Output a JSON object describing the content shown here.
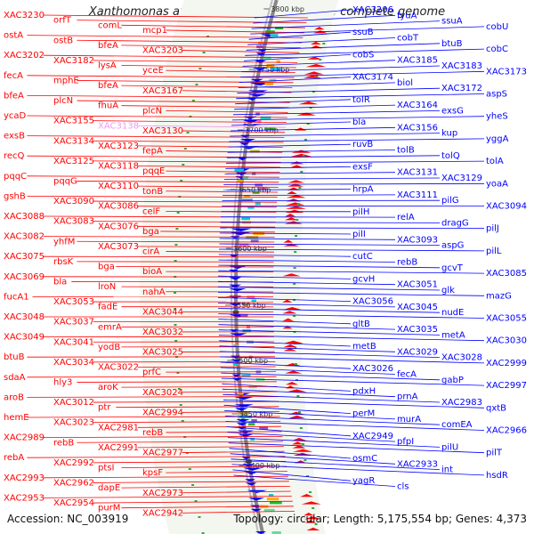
{
  "title": "Xanthomonas axonopodis pv. citri str. 306, complete genome",
  "accession": "Accession: NC_003919",
  "summary": "Topology: circular; Length: 5,175,554 bp; Genes: 4,373",
  "colors": {
    "reverse_strand": "#ff0000",
    "forward_strand": "#0000ff",
    "highlight_label": "#ee99ee",
    "backbone": "#888888"
  },
  "kbp_ticks": [
    "3800 kbp",
    "3750 kbp",
    "3700 kbp",
    "3650 kbp",
    "3600 kbp",
    "3550 kbp",
    "3500 kbp",
    "3450 kbp",
    "3400 kbp"
  ],
  "left_labels": [
    "XAC3230",
    "orfT",
    "comL",
    "mcp1",
    "ostA",
    "ostB",
    "bfeA",
    "XAC3203",
    "XAC3202",
    "XAC3182",
    "lysA",
    "yceE",
    "fecA",
    "mphE",
    "bfeA",
    "XAC3167",
    "bfeA",
    "plcN",
    "fhuA",
    "plcN",
    "ycaD",
    "XAC3155",
    "XAC3138",
    "XAC3130",
    "exsB",
    "XAC3134",
    "XAC3123",
    "fepA",
    "recQ",
    "XAC3125",
    "XAC3118",
    "pqqE",
    "pqqC",
    "pqqG",
    "XAC3110",
    "tonB",
    "gshB",
    "XAC3090",
    "XAC3086",
    "celF",
    "XAC3088",
    "XAC3083",
    "XAC3076",
    "bga",
    "XAC3082",
    "yhfM",
    "XAC3073",
    "cirA",
    "XAC3075",
    "rbsK",
    "bga",
    "bioA",
    "XAC3069",
    "bla",
    "lroN",
    "nahA",
    "fucA1",
    "XAC3053",
    "fadE",
    "XAC3044",
    "XAC3048",
    "XAC3037",
    "emrA",
    "XAC3032",
    "XAC3049",
    "XAC3041",
    "yodB",
    "XAC3025",
    "btuB",
    "XAC3034",
    "XAC3022",
    "prfC",
    "sdaA",
    "hly3",
    "aroK",
    "XAC3024",
    "aroB",
    "XAC3012",
    "ptr",
    "XAC2994",
    "hemE",
    "XAC3023",
    "XAC2981",
    "rebB",
    "XAC2989",
    "rebB",
    "XAC2991",
    "XAC2977",
    "rebA",
    "XAC2992",
    "ptsI",
    "kpsF",
    "XAC2993",
    "XAC2962",
    "dapE",
    "XAC2973",
    "XAC2953",
    "XAC2954",
    "purM",
    "XAC2942"
  ],
  "right_labels": [
    "XAC3206",
    "fyuA",
    "ssuA",
    "cobU",
    "ssuB",
    "cobT",
    "btuB",
    "cobC",
    "cobS",
    "XAC3185",
    "XAC3183",
    "XAC3173",
    "XAC3174",
    "biol",
    "XAC3172",
    "aspS",
    "tolR",
    "XAC3164",
    "exsG",
    "yheS",
    "bla",
    "XAC3156",
    "kup",
    "yggA",
    "ruvB",
    "tolB",
    "tolQ",
    "tolA",
    "exsF",
    "XAC3131",
    "XAC3129",
    "yoaA",
    "hrpA",
    "XAC3111",
    "pilG",
    "XAC3094",
    "pilH",
    "relA",
    "dragG",
    "pilJ",
    "pilI",
    "XAC3093",
    "aspG",
    "pilL",
    "cutC",
    "rebB",
    "gcvT",
    "XAC3085",
    "gcvH",
    "XAC3051",
    "glk",
    "mazG",
    "XAC3056",
    "XAC3045",
    "nudE",
    "XAC3055",
    "gltB",
    "XAC3035",
    "metA",
    "XAC3030",
    "metB",
    "XAC3029",
    "XAC3028",
    "XAC2999",
    "XAC3026",
    "fecA",
    "gabP",
    "XAC2997",
    "pdxH",
    "prnA",
    "XAC2983",
    "qxtB",
    "perM",
    "murA",
    "comEA",
    "XAC2966",
    "XAC2949",
    "pfpI",
    "pilU",
    "pilT",
    "osmC",
    "XAC2933",
    "int",
    "hsdR",
    "yagR",
    "cls"
  ]
}
